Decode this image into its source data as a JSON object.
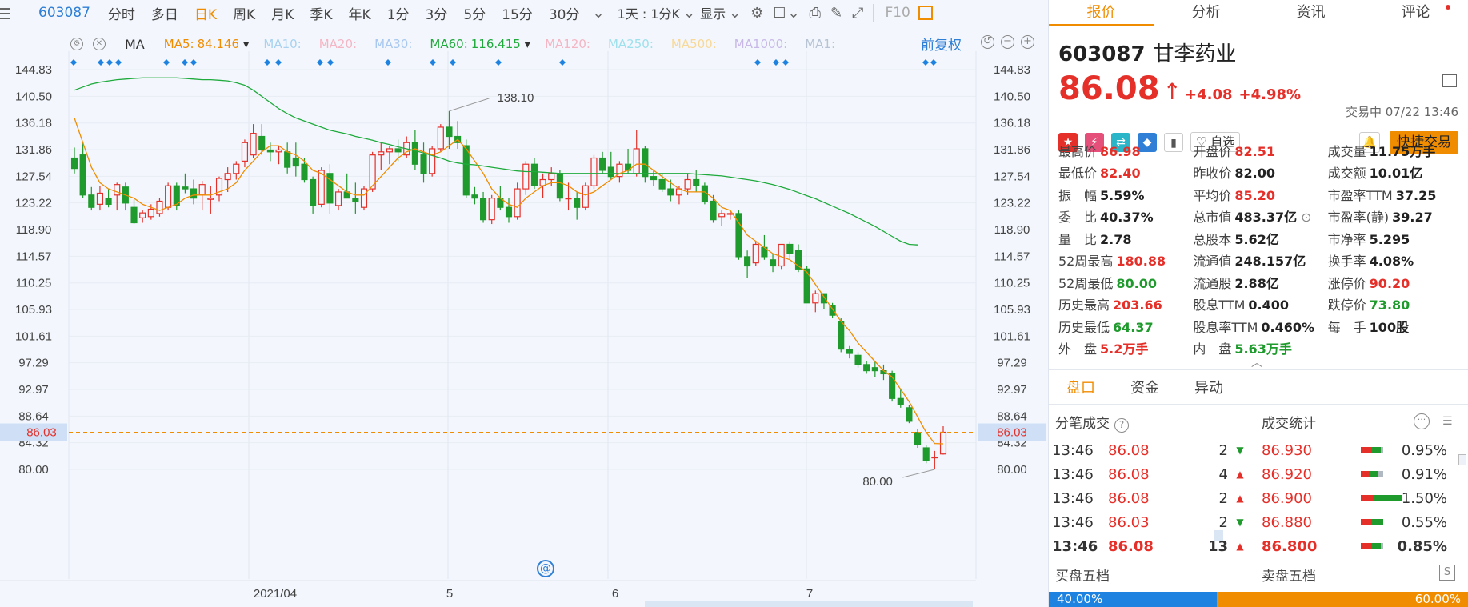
{
  "toolbar": {
    "code": "603087",
    "items": [
      "分时",
      "多日",
      "日K",
      "周K",
      "月K",
      "季K",
      "年K",
      "1分",
      "3分",
      "5分",
      "15分",
      "30分"
    ],
    "active_item": "日K",
    "range_label": "1天 : 1分K",
    "display_label": "显示",
    "f10_label": "F10"
  },
  "chart": {
    "ma_selector": "MA",
    "ma_items": [
      {
        "label": "MA5:",
        "value": "84.146",
        "color": "#f08c00"
      },
      {
        "label": "MA10:",
        "value": "",
        "color": "#a8d2f0"
      },
      {
        "label": "MA20:",
        "value": "",
        "color": "#f4b6c4"
      },
      {
        "label": "MA30:",
        "value": "",
        "color": "#a8c8f0"
      },
      {
        "label": "MA60:",
        "value": "116.415",
        "color": "#1faa3c"
      },
      {
        "label": "MA120:",
        "value": "",
        "color": "#f4b6c4"
      },
      {
        "label": "MA250:",
        "value": "",
        "color": "#9ee0ec"
      },
      {
        "label": "MA500:",
        "value": "",
        "color": "#f8d896"
      },
      {
        "label": "MA1000:",
        "value": "",
        "color": "#c8b8e8"
      },
      {
        "label": "MA1:",
        "value": "",
        "color": "#b8c4d4"
      }
    ],
    "fuquan_label": "前复权",
    "y_ticks": [
      "144.83",
      "140.50",
      "136.18",
      "131.86",
      "127.54",
      "123.22",
      "118.90",
      "114.57",
      "110.25",
      "105.93",
      "101.61",
      "97.29",
      "92.97",
      "88.64",
      "84.32",
      "80.00"
    ],
    "y_tick_values": [
      144.83,
      140.5,
      136.18,
      131.86,
      127.54,
      123.22,
      118.9,
      114.57,
      110.25,
      105.93,
      101.61,
      97.29,
      92.97,
      88.64,
      84.32,
      80.0
    ],
    "x_labels": [
      "2021/04",
      "5",
      "6",
      "7"
    ],
    "current_price_tag": "86.03",
    "high_label": "138.10",
    "low_label": "80.00",
    "up_color": "#e5302a",
    "down_color": "#1f9a2c"
  },
  "panel": {
    "tabs": [
      "报价",
      "分析",
      "资讯",
      "评论"
    ],
    "code": "603087",
    "name": "甘李药业",
    "price": "86.08",
    "change": "+4.08",
    "change_pct": "+4.98%",
    "status": "交易中 07/22 13:46",
    "watch_label": "自选",
    "quick_trade_label": "快捷交易",
    "stats": [
      [
        {
          "l": "最高价",
          "v": "86.98",
          "c": "red"
        },
        {
          "l": "开盘价",
          "v": "82.51",
          "c": "red"
        },
        {
          "l": "成交量",
          "v": "11.75万手",
          "c": "dark"
        }
      ],
      [
        {
          "l": "最低价",
          "v": "82.40",
          "c": "red"
        },
        {
          "l": "昨收价",
          "v": "82.00",
          "c": "dark"
        },
        {
          "l": "成交额",
          "v": "10.01亿",
          "c": "dark"
        }
      ],
      [
        {
          "l": "振　幅",
          "v": "5.59%",
          "c": "dark"
        },
        {
          "l": "平均价",
          "v": "85.20",
          "c": "red"
        },
        {
          "l": "市盈率TTM",
          "v": "37.25",
          "c": "dark"
        }
      ],
      [
        {
          "l": "委　比",
          "v": "40.37%",
          "c": "dark"
        },
        {
          "l": "总市值",
          "v": "483.37亿",
          "c": "dark"
        },
        {
          "l": "市盈率(静)",
          "v": "39.27",
          "c": "dark"
        }
      ],
      [
        {
          "l": "量　比",
          "v": "2.78",
          "c": "dark"
        },
        {
          "l": "总股本",
          "v": "5.62亿",
          "c": "dark"
        },
        {
          "l": "市净率",
          "v": "5.295",
          "c": "dark"
        }
      ],
      [
        {
          "l": "52周最高",
          "v": "180.88",
          "c": "red"
        },
        {
          "l": "流通值",
          "v": "248.157亿",
          "c": "dark"
        },
        {
          "l": "换手率",
          "v": "4.08%",
          "c": "dark"
        }
      ],
      [
        {
          "l": "52周最低",
          "v": "80.00",
          "c": "green"
        },
        {
          "l": "流通股",
          "v": "2.88亿",
          "c": "dark"
        },
        {
          "l": "涨停价",
          "v": "90.20",
          "c": "red"
        }
      ],
      [
        {
          "l": "历史最高",
          "v": "203.66",
          "c": "red"
        },
        {
          "l": "股息TTM",
          "v": "0.400",
          "c": "dark"
        },
        {
          "l": "跌停价",
          "v": "73.80",
          "c": "green"
        }
      ],
      [
        {
          "l": "历史最低",
          "v": "64.37",
          "c": "green"
        },
        {
          "l": "股息率TTM",
          "v": "0.460%",
          "c": "dark"
        },
        {
          "l": "每　手",
          "v": "100股",
          "c": "dark"
        }
      ],
      [
        {
          "l": "外　盘",
          "v": "5.2万手",
          "c": "red"
        },
        {
          "l": "内　盘",
          "v": "5.63万手",
          "c": "green"
        },
        {
          "l": "",
          "v": "",
          "c": "dark"
        }
      ]
    ],
    "sub_tabs": [
      "盘口",
      "资金",
      "异动"
    ],
    "trades_title": "分笔成交",
    "stats_title": "成交统计",
    "trades": [
      {
        "time": "13:46",
        "price": "86.08",
        "vol": "2",
        "dir": "down",
        "sprice": "86.930",
        "pct": "0.95%",
        "r": 0.5,
        "g": 0.4,
        "x": 0.1
      },
      {
        "time": "13:46",
        "price": "86.08",
        "vol": "4",
        "dir": "up",
        "sprice": "86.920",
        "pct": "0.91%",
        "r": 0.4,
        "g": 0.4,
        "x": 0.2
      },
      {
        "time": "13:46",
        "price": "86.08",
        "vol": "2",
        "dir": "up",
        "sprice": "86.900",
        "pct": "1.50%",
        "r": 0.3,
        "g": 0.7,
        "x": 0
      },
      {
        "time": "13:46",
        "price": "86.03",
        "vol": "2",
        "dir": "down",
        "sprice": "86.880",
        "pct": "0.55%",
        "r": 0.5,
        "g": 0.5,
        "x": 0
      },
      {
        "time": "13:46",
        "price": "86.08",
        "vol": "13",
        "dir": "up",
        "sprice": "86.800",
        "pct": "0.85%",
        "r": 0.5,
        "g": 0.4,
        "x": 0.1
      }
    ],
    "buy5_label": "买盘五档",
    "sell5_label": "卖盘五档",
    "buy_ratio": "40.00%",
    "sell_ratio": "60.00%"
  },
  "chart_data": {
    "type": "candlestick",
    "ylim": [
      80.0,
      144.83
    ],
    "ohlc": [
      [
        130.5,
        132.2,
        128.0,
        128.8
      ],
      [
        131.0,
        133.0,
        124.0,
        124.5
      ],
      [
        124.5,
        125.8,
        122.0,
        122.5
      ],
      [
        123.0,
        126.0,
        122.0,
        124.8
      ],
      [
        124.0,
        125.5,
        122.5,
        123.0
      ],
      [
        124.5,
        126.5,
        122.0,
        126.2
      ],
      [
        125.8,
        126.5,
        122.0,
        123.2
      ],
      [
        122.5,
        123.8,
        119.8,
        120.0
      ],
      [
        120.8,
        122.0,
        120.0,
        121.6
      ],
      [
        121.0,
        123.0,
        120.5,
        122.2
      ],
      [
        121.5,
        124.0,
        121.0,
        123.5
      ],
      [
        122.5,
        126.5,
        122.0,
        126.0
      ],
      [
        126.0,
        126.5,
        122.0,
        122.8
      ],
      [
        125.8,
        128.0,
        124.8,
        125.5
      ],
      [
        125.5,
        127.0,
        123.0,
        124.0
      ],
      [
        124.5,
        126.8,
        122.0,
        126.2
      ],
      [
        123.8,
        126.0,
        121.5,
        124.0
      ],
      [
        124.5,
        127.5,
        123.5,
        127.2
      ],
      [
        127.0,
        129.0,
        125.0,
        128.0
      ],
      [
        128.0,
        130.0,
        127.0,
        129.5
      ],
      [
        130.0,
        133.5,
        129.0,
        133.0
      ],
      [
        131.0,
        136.0,
        130.5,
        134.5
      ],
      [
        134.0,
        136.0,
        131.0,
        131.8
      ],
      [
        131.8,
        133.0,
        130.0,
        131.5
      ],
      [
        131.5,
        132.5,
        129.5,
        131.8
      ],
      [
        131.5,
        133.0,
        128.0,
        129.0
      ],
      [
        130.5,
        133.0,
        127.5,
        129.2
      ],
      [
        129.5,
        130.5,
        126.5,
        127.0
      ],
      [
        127.0,
        127.5,
        121.5,
        122.8
      ],
      [
        123.0,
        129.0,
        122.5,
        128.5
      ],
      [
        128.0,
        129.5,
        121.5,
        123.2
      ],
      [
        122.8,
        125.5,
        122.0,
        125.0
      ],
      [
        125.0,
        128.0,
        124.0,
        124.0
      ],
      [
        124.0,
        126.5,
        121.5,
        123.5
      ],
      [
        122.5,
        126.0,
        122.0,
        125.5
      ],
      [
        125.5,
        131.5,
        125.0,
        131.0
      ],
      [
        131.0,
        133.0,
        128.5,
        131.5
      ],
      [
        131.5,
        132.5,
        129.5,
        132.0
      ],
      [
        132.0,
        133.5,
        130.0,
        131.5
      ],
      [
        131.0,
        134.0,
        130.5,
        133.0
      ],
      [
        133.0,
        135.0,
        128.5,
        129.5
      ],
      [
        131.0,
        133.0,
        126.5,
        128.0
      ],
      [
        128.0,
        132.5,
        127.5,
        132.0
      ],
      [
        132.0,
        136.0,
        131.5,
        135.5
      ],
      [
        135.5,
        138.1,
        132.0,
        134.0
      ],
      [
        134.0,
        136.5,
        132.0,
        133.0
      ],
      [
        132.5,
        133.5,
        124.0,
        124.5
      ],
      [
        124.5,
        125.8,
        123.0,
        124.0
      ],
      [
        124.0,
        125.0,
        120.0,
        120.5
      ],
      [
        120.5,
        124.5,
        119.8,
        124.0
      ],
      [
        124.0,
        126.0,
        122.0,
        122.5
      ],
      [
        122.5,
        124.0,
        120.0,
        121.0
      ],
      [
        121.0,
        126.5,
        120.5,
        125.5
      ],
      [
        125.5,
        130.0,
        124.5,
        129.5
      ],
      [
        129.5,
        130.5,
        125.5,
        126.0
      ],
      [
        126.0,
        128.0,
        124.0,
        127.0
      ],
      [
        127.0,
        129.0,
        126.0,
        128.0
      ],
      [
        128.0,
        128.5,
        123.5,
        124.0
      ],
      [
        124.0,
        126.5,
        122.0,
        124.0
      ],
      [
        124.0,
        125.0,
        120.5,
        122.5
      ],
      [
        122.5,
        126.5,
        122.0,
        126.0
      ],
      [
        126.0,
        131.0,
        125.5,
        130.5
      ],
      [
        130.5,
        131.5,
        128.0,
        128.5
      ],
      [
        129.0,
        131.5,
        127.0,
        127.5
      ],
      [
        127.5,
        130.0,
        126.5,
        129.5
      ],
      [
        129.5,
        132.0,
        128.0,
        128.5
      ],
      [
        128.0,
        135.0,
        127.5,
        132.0
      ],
      [
        132.0,
        132.5,
        126.5,
        127.5
      ],
      [
        127.5,
        128.5,
        126.0,
        127.0
      ],
      [
        127.0,
        128.0,
        125.0,
        125.5
      ],
      [
        125.5,
        127.0,
        123.5,
        124.5
      ],
      [
        124.5,
        126.0,
        123.0,
        125.5
      ],
      [
        125.5,
        128.0,
        124.5,
        127.0
      ],
      [
        127.0,
        128.5,
        125.0,
        126.0
      ],
      [
        126.0,
        126.5,
        123.0,
        123.5
      ],
      [
        123.5,
        124.5,
        120.0,
        120.5
      ],
      [
        121.0,
        122.0,
        119.5,
        121.5
      ],
      [
        121.5,
        122.0,
        120.5,
        121.5
      ],
      [
        121.5,
        122.0,
        114.0,
        114.5
      ],
      [
        114.5,
        115.5,
        111.0,
        113.0
      ],
      [
        113.5,
        117.0,
        113.0,
        116.5
      ],
      [
        116.0,
        118.0,
        114.0,
        114.5
      ],
      [
        114.0,
        115.0,
        112.0,
        113.0
      ],
      [
        113.0,
        116.5,
        112.5,
        116.5
      ],
      [
        116.5,
        117.0,
        114.0,
        115.0
      ],
      [
        115.5,
        116.5,
        112.0,
        112.5
      ],
      [
        112.5,
        113.0,
        107.0,
        107.0
      ],
      [
        107.0,
        109.0,
        105.5,
        108.5
      ],
      [
        108.5,
        108.5,
        106.0,
        107.0
      ],
      [
        106.5,
        107.0,
        104.5,
        105.0
      ],
      [
        104.0,
        104.5,
        99.0,
        99.5
      ],
      [
        99.5,
        100.0,
        98.0,
        98.8
      ],
      [
        98.5,
        99.0,
        96.5,
        97.0
      ],
      [
        97.0,
        97.5,
        95.5,
        96.0
      ],
      [
        96.5,
        97.5,
        95.0,
        96.0
      ],
      [
        96.0,
        97.0,
        94.5,
        95.5
      ],
      [
        95.5,
        96.0,
        91.0,
        91.5
      ],
      [
        91.5,
        93.0,
        90.0,
        90.5
      ],
      [
        90.0,
        90.5,
        87.5,
        87.8
      ],
      [
        86.0,
        86.5,
        83.5,
        84.0
      ],
      [
        83.5,
        84.0,
        81.0,
        81.5
      ],
      [
        82.0,
        83.0,
        80.0,
        82.0
      ],
      [
        82.5,
        87.0,
        82.4,
        86.03
      ]
    ],
    "ma5": [
      137,
      133,
      129,
      126.5,
      125.5,
      125,
      124.5,
      124,
      123,
      122.5,
      122,
      122.5,
      123,
      124,
      124.5,
      124.5,
      124.5,
      125,
      125.5,
      126.5,
      128.5,
      130,
      131.5,
      132.5,
      132.5,
      131.5,
      131,
      130,
      128.5,
      128,
      127,
      126,
      125,
      124.5,
      124.5,
      126,
      127.5,
      129,
      130.5,
      131.5,
      132,
      131.5,
      131,
      131.5,
      132.5,
      133.5,
      132,
      130,
      128,
      125.5,
      124,
      123,
      122.5,
      124,
      125,
      126,
      126.5,
      126.5,
      126,
      125,
      124.5,
      125,
      126,
      127,
      128,
      128.5,
      129.5,
      129.5,
      128.5,
      127.5,
      126.5,
      125.5,
      125,
      125,
      125,
      124,
      122.5,
      122,
      120,
      118,
      117,
      116,
      115,
      114.5,
      114,
      113,
      112,
      110,
      108,
      106,
      104,
      102.5,
      100.5,
      99,
      97.5,
      96,
      95,
      93,
      91,
      88.5,
      86,
      84.2,
      84.146
    ],
    "ma60": [
      141.5,
      142,
      142.5,
      142.8,
      143,
      143.2,
      143.3,
      143.4,
      143.5,
      143.5,
      143.5,
      143.5,
      143.5,
      143.4,
      143.3,
      143.2,
      143.2,
      143.1,
      143,
      142.7,
      142.3,
      141.5,
      140.5,
      139.5,
      138.5,
      137.7,
      137,
      136.5,
      136,
      135.5,
      135,
      134.7,
      134.4,
      134,
      133.7,
      133.4,
      133,
      132.7,
      132.3,
      132,
      131.7,
      131.3,
      130.9,
      130.5,
      130,
      129.7,
      129.5,
      129.4,
      129.2,
      129,
      128.8,
      128.6,
      128.4,
      128.3,
      128.3,
      128.2,
      128.1,
      128,
      128,
      128,
      128,
      128,
      128,
      128,
      128,
      128,
      128,
      128,
      128,
      128,
      128,
      128,
      128,
      127.9,
      127.8,
      127.7,
      127.6,
      127.4,
      127.2,
      127,
      126.8,
      126.5,
      126.2,
      125.8,
      125.4,
      124.9,
      124.4,
      123.9,
      123.3,
      122.7,
      122.1,
      121.5,
      120.8,
      120.1,
      119.4,
      118.6,
      117.8,
      117,
      116.5,
      116.415
    ]
  }
}
